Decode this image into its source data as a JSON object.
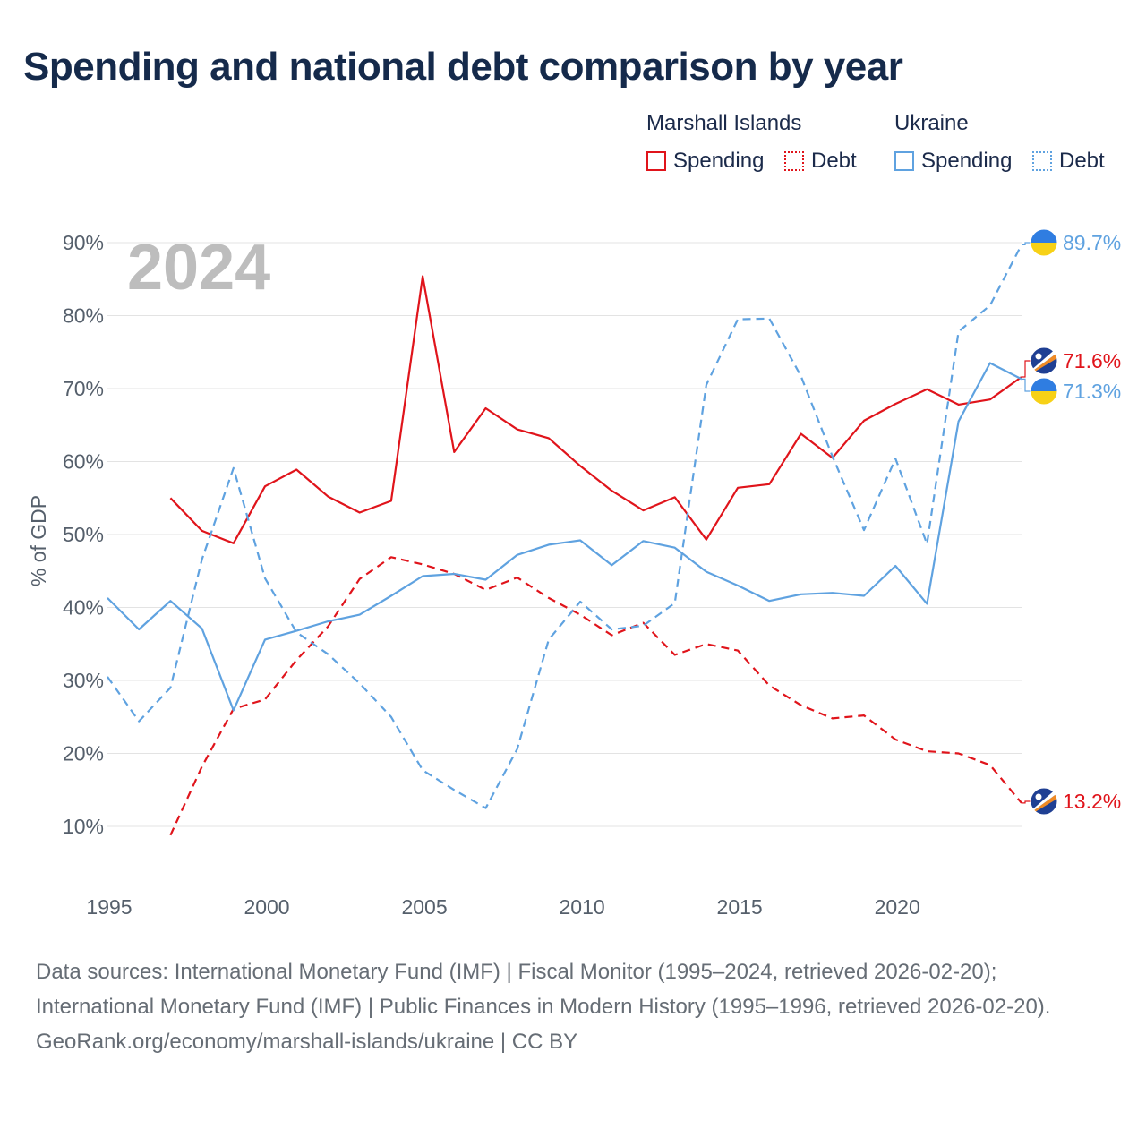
{
  "title": "Spending and national debt comparison by year",
  "legend": {
    "groups": [
      "Marshall Islands",
      "Ukraine"
    ],
    "items": {
      "ms": "Spending",
      "md": "Debt",
      "us": "Spending",
      "ud": "Debt"
    }
  },
  "chart_data": {
    "type": "line",
    "title": "Spending and national debt comparison by year",
    "year_watermark": "2024",
    "xlabel": "",
    "ylabel": "% of GDP",
    "xlim": [
      1995,
      2024
    ],
    "ylim": [
      0,
      95
    ],
    "x_ticks": [
      1995,
      2000,
      2005,
      2010,
      2015,
      2020
    ],
    "y_ticks": [
      10,
      20,
      30,
      40,
      50,
      60,
      70,
      80,
      90
    ],
    "y_tick_labels": [
      "10%",
      "20%",
      "30%",
      "40%",
      "50%",
      "60%",
      "70%",
      "80%",
      "90%"
    ],
    "grid": true,
    "colors": {
      "marshall": "#e0141b",
      "ukraine": "#5fa2e0"
    },
    "series": [
      {
        "name": "Marshall Islands Spending",
        "country": "Marshall Islands",
        "style": "solid",
        "color": "#e0141b",
        "x": [
          1997,
          1998,
          1999,
          2000,
          2001,
          2002,
          2003,
          2004,
          2005,
          2006,
          2007,
          2008,
          2009,
          2010,
          2011,
          2012,
          2013,
          2014,
          2015,
          2016,
          2017,
          2018,
          2019,
          2020,
          2021,
          2022,
          2023,
          2024
        ],
        "values": [
          55.0,
          50.5,
          48.8,
          56.6,
          58.9,
          55.2,
          53.0,
          54.6,
          85.4,
          61.3,
          67.3,
          64.4,
          63.2,
          59.4,
          56.0,
          53.3,
          55.1,
          49.3,
          56.4,
          56.9,
          63.8,
          60.5,
          65.6,
          67.9,
          69.9,
          67.8,
          68.5,
          71.6
        ]
      },
      {
        "name": "Marshall Islands Debt",
        "country": "Marshall Islands",
        "style": "dashed",
        "color": "#e0141b",
        "x": [
          1997,
          1998,
          1999,
          2000,
          2001,
          2002,
          2003,
          2004,
          2005,
          2006,
          2007,
          2008,
          2009,
          2010,
          2011,
          2012,
          2013,
          2014,
          2015,
          2016,
          2017,
          2018,
          2019,
          2020,
          2021,
          2022,
          2023,
          2024
        ],
        "values": [
          8.8,
          18.2,
          26.1,
          27.4,
          32.8,
          37.4,
          43.9,
          46.9,
          45.9,
          44.6,
          42.4,
          44.1,
          41.3,
          39.0,
          36.2,
          37.9,
          33.5,
          35.0,
          34.1,
          29.3,
          26.6,
          24.8,
          25.2,
          21.9,
          20.3,
          20.0,
          18.4,
          13.2
        ]
      },
      {
        "name": "Ukraine Spending",
        "country": "Ukraine",
        "style": "solid",
        "color": "#5fa2e0",
        "x": [
          1995,
          1996,
          1997,
          1998,
          1999,
          2000,
          2001,
          2002,
          2003,
          2004,
          2005,
          2006,
          2007,
          2008,
          2009,
          2010,
          2011,
          2012,
          2013,
          2014,
          2015,
          2016,
          2017,
          2018,
          2019,
          2020,
          2021,
          2022,
          2023,
          2024
        ],
        "values": [
          41.3,
          37.0,
          40.9,
          37.1,
          25.9,
          35.6,
          36.8,
          38.1,
          39.0,
          41.6,
          44.3,
          44.6,
          43.8,
          47.2,
          48.6,
          49.2,
          45.8,
          49.1,
          48.2,
          44.9,
          43.0,
          40.9,
          41.8,
          42.0,
          41.6,
          45.7,
          40.5,
          65.5,
          73.5,
          71.3
        ]
      },
      {
        "name": "Ukraine Debt",
        "country": "Ukraine",
        "style": "dashed",
        "color": "#5fa2e0",
        "x": [
          1995,
          1996,
          1997,
          1998,
          1999,
          2000,
          2001,
          2002,
          2003,
          2004,
          2005,
          2006,
          2007,
          2008,
          2009,
          2010,
          2011,
          2012,
          2013,
          2014,
          2015,
          2016,
          2017,
          2018,
          2019,
          2020,
          2021,
          2022,
          2023,
          2024
        ],
        "values": [
          30.5,
          24.4,
          29.0,
          46.6,
          59.1,
          44.0,
          36.6,
          33.6,
          29.6,
          25.0,
          17.7,
          15.0,
          12.5,
          20.6,
          35.6,
          40.8,
          37.0,
          37.5,
          40.6,
          70.5,
          79.5,
          79.6,
          71.7,
          60.7,
          50.6,
          60.4,
          48.7,
          77.8,
          81.4,
          89.7
        ]
      }
    ],
    "end_labels": [
      {
        "series": "Ukraine Debt",
        "text": "89.7%",
        "flag": "ukraine-flag-icon"
      },
      {
        "series": "Marshall Islands Spending",
        "text": "71.6%",
        "flag": "marshall-islands-flag-icon"
      },
      {
        "series": "Ukraine Spending",
        "text": "71.3%",
        "flag": "ukraine-flag-icon"
      },
      {
        "series": "Marshall Islands Debt",
        "text": "13.2%",
        "flag": "marshall-islands-flag-icon"
      }
    ]
  },
  "footer": {
    "sources": "Data sources: International Monetary Fund (IMF) | Fiscal Monitor (1995–2024, retrieved 2026-02-20); International Monetary Fund (IMF) | Public Finances in Modern History (1995–1996, retrieved 2026-02-20).",
    "credit": "GeoRank.org/economy/marshall-islands/ukraine | CC BY"
  }
}
